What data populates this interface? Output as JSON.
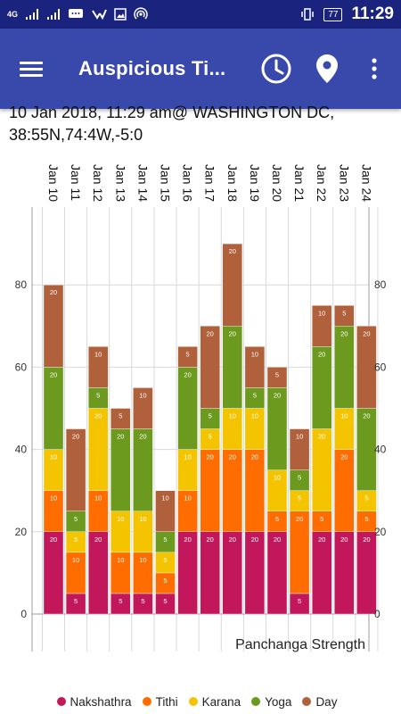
{
  "status_bar": {
    "time": "11:29",
    "battery": "77",
    "network": "4G",
    "icons": [
      "signal-icon",
      "signal-icon",
      "chat-icon",
      "check-icon",
      "image-icon",
      "hotspot-icon",
      "vibrate-icon",
      "battery-icon"
    ]
  },
  "app_bar": {
    "title": "Auspicious Ti...",
    "icons": [
      "menu-icon",
      "clock-icon",
      "location-pin-icon",
      "more-vert-icon"
    ]
  },
  "header": {
    "line1": "10 Jan 2018, 11:29 am@ WASHINGTON DC,",
    "line2": "38:55N,74:4W,-5:0"
  },
  "colors": {
    "Nakshathra": "#c2185b",
    "Tithi": "#ff6d00",
    "Karana": "#f5c400",
    "Yoga": "#6b9a1e",
    "Day": "#b0603a",
    "statusbar": "#1a237e",
    "appbar": "#3949ab"
  },
  "chart_data": {
    "type": "bar",
    "stacked": true,
    "title": "Panchanga Strength",
    "categories": [
      "Jan 10",
      "Jan 11",
      "Jan 12",
      "Jan 13",
      "Jan 14",
      "Jan 15",
      "Jan 16",
      "Jan 17",
      "Jan 18",
      "Jan 19",
      "Jan 20",
      "Jan 21",
      "Jan 22",
      "Jan 23",
      "Jan 24"
    ],
    "series": [
      {
        "name": "Nakshathra",
        "values": [
          20,
          5,
          20,
          5,
          5,
          5,
          20,
          20,
          20,
          20,
          20,
          5,
          20,
          20,
          20
        ]
      },
      {
        "name": "Tithi",
        "values": [
          10,
          10,
          10,
          10,
          10,
          5,
          10,
          20,
          20,
          20,
          5,
          20,
          5,
          20,
          5
        ]
      },
      {
        "name": "Karana",
        "values": [
          10,
          5,
          20,
          10,
          10,
          5,
          10,
          5,
          10,
          10,
          10,
          5,
          20,
          10,
          5
        ]
      },
      {
        "name": "Yoga",
        "values": [
          20,
          5,
          5,
          20,
          20,
          5,
          20,
          5,
          20,
          5,
          20,
          5,
          20,
          20,
          20
        ]
      },
      {
        "name": "Day",
        "values": [
          20,
          20,
          10,
          5,
          10,
          10,
          5,
          20,
          20,
          10,
          5,
          10,
          10,
          5,
          20
        ]
      }
    ],
    "ylim": [
      0,
      100
    ],
    "yticks": [
      "0",
      "20",
      "40",
      "60",
      "80"
    ],
    "grid": true,
    "legend_position": "bottom"
  }
}
